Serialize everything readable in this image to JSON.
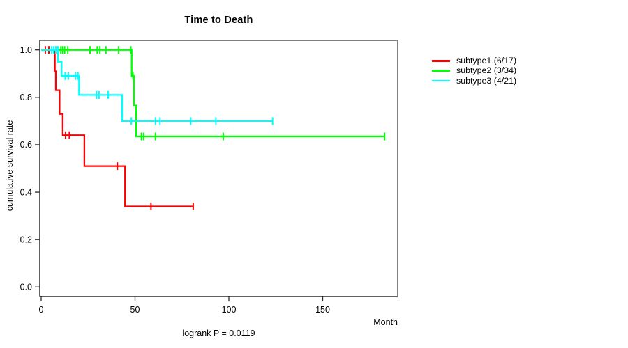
{
  "chart_data": {
    "type": "line",
    "variant": "kaplan-meier-step",
    "title": "Time to Death",
    "xlabel": "Month",
    "ylabel": "cumulative survival rate",
    "annotation": "logrank P = 0.0119",
    "xlim": [
      0,
      190
    ],
    "xticks": [
      0,
      50,
      100,
      150
    ],
    "ylim": [
      0,
      1
    ],
    "yticks": [
      0.0,
      0.2,
      0.4,
      0.6,
      0.8,
      1.0
    ],
    "grid": false,
    "legend_position": "right",
    "series": [
      {
        "name": "subtype1 (6/17)",
        "color": "#ff0000",
        "drops": [
          [
            0,
            1.0
          ],
          [
            7.3,
            0.91
          ],
          [
            7.8,
            0.83
          ],
          [
            9.8,
            0.73
          ],
          [
            11.5,
            0.64
          ],
          [
            23,
            0.51
          ],
          [
            44.7,
            0.34
          ]
        ],
        "end_time": 81,
        "censors": [
          [
            2.2,
            1.0
          ],
          [
            4.1,
            1.0
          ],
          [
            13,
            0.64
          ],
          [
            15,
            0.64
          ],
          [
            40.6,
            0.51
          ],
          [
            58.5,
            0.34
          ],
          [
            81,
            0.34
          ]
        ]
      },
      {
        "name": "subtype2 (3/34)",
        "color": "#00ff00",
        "drops": [
          [
            0,
            1.0
          ],
          [
            48.2,
            0.89
          ],
          [
            49.4,
            0.765
          ],
          [
            50.6,
            0.635
          ]
        ],
        "end_time": 183,
        "censors": [
          [
            10.5,
            1.0
          ],
          [
            11.5,
            1.0
          ],
          [
            12.5,
            1.0
          ],
          [
            14.2,
            1.0
          ],
          [
            26,
            1.0
          ],
          [
            29.9,
            1.0
          ],
          [
            31.3,
            1.0
          ],
          [
            34.5,
            1.0
          ],
          [
            41.3,
            1.0
          ],
          [
            47.8,
            1.0
          ],
          [
            48.9,
            0.89
          ],
          [
            53.4,
            0.635
          ],
          [
            54.6,
            0.635
          ],
          [
            60.9,
            0.635
          ],
          [
            97,
            0.635
          ],
          [
            183,
            0.635
          ]
        ]
      },
      {
        "name": "subtype3 (4/21)",
        "color": "#00ffff",
        "drops": [
          [
            0,
            1.0
          ],
          [
            9.0,
            0.95
          ],
          [
            10.9,
            0.89
          ],
          [
            20.2,
            0.81
          ],
          [
            43.1,
            0.7
          ]
        ],
        "end_time": 123.3,
        "censors": [
          [
            5.6,
            1.0
          ],
          [
            6.7,
            1.0
          ],
          [
            7.8,
            1.0
          ],
          [
            8.9,
            1.0
          ],
          [
            12.8,
            0.89
          ],
          [
            14.5,
            0.89
          ],
          [
            18.3,
            0.89
          ],
          [
            19.6,
            0.89
          ],
          [
            29.5,
            0.81
          ],
          [
            30.8,
            0.81
          ],
          [
            35.7,
            0.81
          ],
          [
            48,
            0.7
          ],
          [
            60.9,
            0.7
          ],
          [
            63.3,
            0.7
          ],
          [
            79.7,
            0.7
          ],
          [
            93.1,
            0.7
          ],
          [
            123.3,
            0.7
          ]
        ]
      }
    ]
  }
}
